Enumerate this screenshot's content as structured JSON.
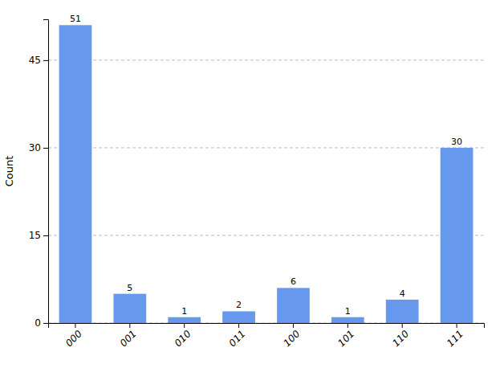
{
  "chart_data": {
    "type": "bar",
    "categories": [
      "000",
      "001",
      "010",
      "011",
      "100",
      "101",
      "110",
      "111"
    ],
    "values": [
      51,
      5,
      1,
      2,
      6,
      1,
      4,
      30
    ],
    "color": "#6699ee",
    "ylabel": "Count",
    "ylim": [
      0,
      52
    ],
    "yticks": [
      0,
      15,
      30,
      45
    ],
    "grid": true,
    "data_labels": true
  }
}
